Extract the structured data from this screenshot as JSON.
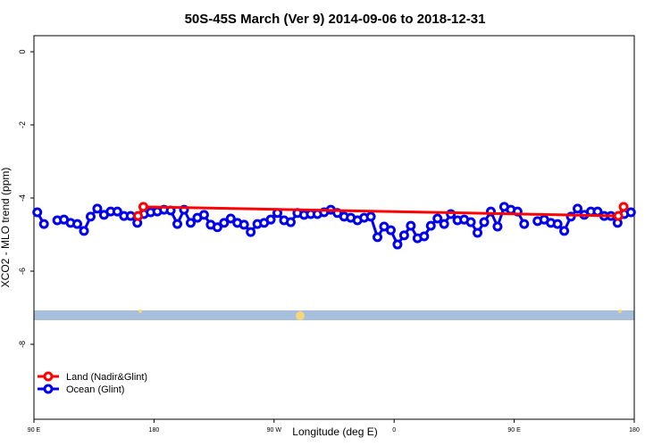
{
  "chart_data": {
    "type": "line",
    "title": "50S-45S March (Ver 9)   2014-09-06 to 2018-12-31",
    "xlabel": "Longitude (deg E)",
    "ylabel": "XCO2 - MLO trend (ppm)",
    "xlim": [
      90,
      540
    ],
    "ylim": [
      -10.05,
      0.44
    ],
    "xticks": [
      {
        "value": 90,
        "label": "90 E"
      },
      180,
      {
        "value": 270,
        "label": "90 W"
      },
      {
        "value": 360,
        "label": "0"
      },
      {
        "value": 450,
        "label": "90 E"
      },
      {
        "value": 540,
        "label": "180"
      }
    ],
    "yticks": [
      0,
      -2,
      -4,
      -6,
      -8
    ],
    "legend": "bottom-left",
    "series": [
      {
        "name": "Land (Nadir&Glint)",
        "color": "#ff0000",
        "x": [
          168,
          172,
          528,
          532
        ],
        "values": [
          -4.49,
          -4.24,
          -4.49,
          -4.24
        ]
      },
      {
        "name": "Ocean (Glint)",
        "color": "#0000ee",
        "x": [
          92.5,
          97.5,
          102.5,
          107.5,
          112.5,
          117.5,
          122.5,
          127.5,
          132.5,
          137.5,
          142.5,
          147.5,
          152.5,
          157.5,
          162.5,
          167.5,
          172.5,
          177.5,
          182.5,
          187.5,
          192.5,
          197.5,
          202.5,
          207.5,
          212.5,
          217.5,
          222.5,
          227.5,
          232.5,
          237.5,
          242.5,
          247.5,
          252.5,
          257.5,
          262.5,
          267.5,
          272.5,
          277.5,
          282.5,
          287.5,
          292.5,
          297.5,
          302.5,
          307.5,
          312.5,
          317.5,
          322.5,
          327.5,
          332.5,
          337.5,
          342.5,
          347.5,
          352.5,
          357.5,
          362.5,
          367.5,
          372.5,
          377.5,
          382.5,
          387.5,
          392.5,
          397.5,
          402.5,
          407.5,
          412.5,
          417.5,
          422.5,
          427.5,
          432.5,
          437.5,
          442.5,
          447.5,
          452.5,
          457.5,
          462.5,
          467.5,
          472.5,
          477.5,
          482.5,
          487.5,
          492.5,
          497.5,
          502.5,
          507.5,
          512.5,
          517.5,
          522.5,
          527.5,
          532.5,
          537.5
        ],
        "values": [
          -4.39,
          -4.71,
          null,
          -4.61,
          -4.59,
          -4.68,
          -4.71,
          -4.9,
          -4.51,
          -4.29,
          -4.46,
          -4.37,
          -4.37,
          -4.49,
          -4.49,
          -4.68,
          -4.44,
          -4.39,
          -4.37,
          -4.32,
          -4.34,
          -4.71,
          -4.32,
          -4.68,
          -4.54,
          -4.46,
          -4.73,
          -4.8,
          -4.68,
          -4.56,
          -4.68,
          -4.73,
          -4.93,
          -4.71,
          -4.68,
          -4.59,
          -4.41,
          -4.61,
          -4.66,
          -4.41,
          -4.46,
          -4.44,
          -4.44,
          -4.39,
          -4.32,
          -4.41,
          -4.51,
          -4.54,
          -4.61,
          -4.54,
          -4.51,
          -5.07,
          -4.78,
          -4.88,
          -5.27,
          -5.02,
          -4.76,
          -5.1,
          -5.05,
          -4.76,
          -4.56,
          -4.71,
          -4.44,
          -4.61,
          -4.59,
          -4.66,
          -4.95,
          -4.66,
          -4.37,
          -4.78,
          -4.24,
          -4.32,
          -4.37,
          -4.71,
          null,
          -4.63,
          -4.59,
          -4.68,
          -4.71,
          -4.9,
          -4.51,
          -4.29,
          -4.46,
          -4.37,
          -4.37,
          -4.49,
          -4.49,
          -4.68,
          -4.44,
          -4.39
        ]
      }
    ]
  }
}
